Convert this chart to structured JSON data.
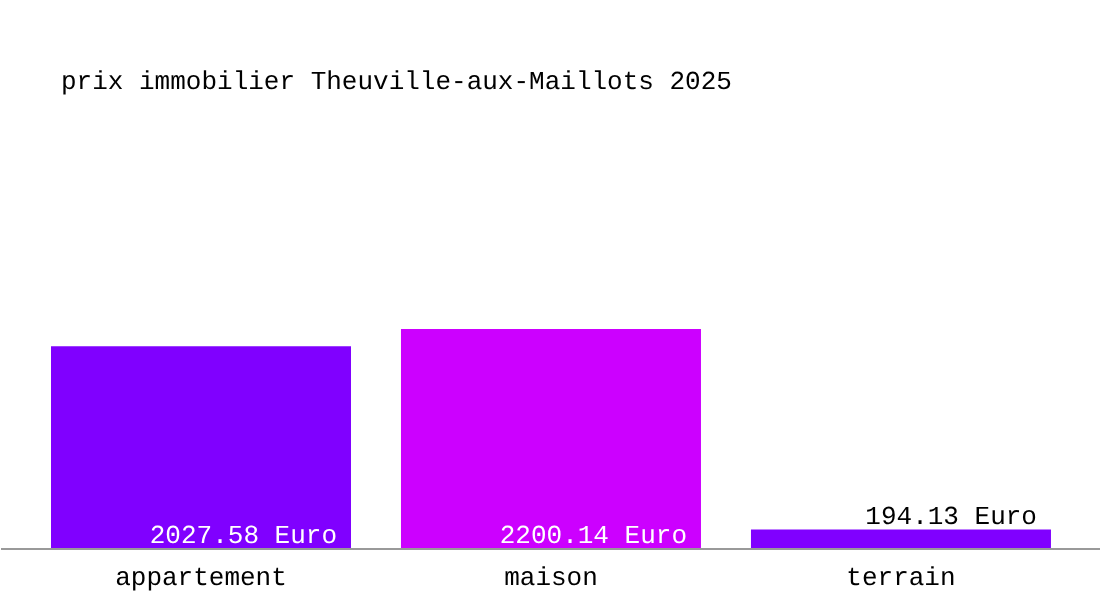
{
  "chart_data": {
    "type": "bar",
    "title": "prix immobilier Theuville-aux-Maillots 2025",
    "categories": [
      "appartement",
      "maison",
      "terrain"
    ],
    "values": [
      2027.58,
      2200.14,
      194.13
    ],
    "colors": [
      "#8000ff",
      "#cc00ff",
      "#8000ff"
    ],
    "value_labels": [
      "2027.58 Euro",
      "2200.14 Euro",
      "194.13 Euro"
    ]
  }
}
